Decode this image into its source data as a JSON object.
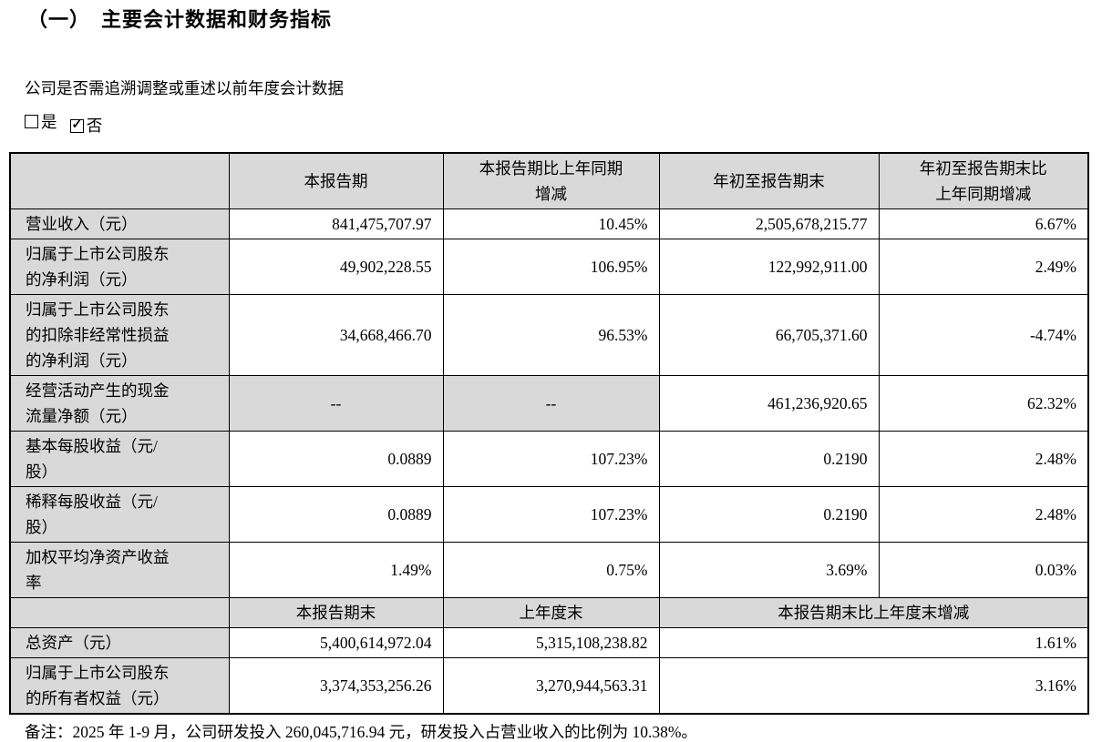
{
  "page": {
    "title": "（一）　主要会计数据和财务指标",
    "question": "公司是否需追溯调整或重述以前年度会计数据",
    "checkbox_yes_label": "是",
    "checkbox_no_label": "否",
    "check_glyph": "✓",
    "note": "备注：2025 年 1-9 月，公司研发投入 260,045,716.94 元，研发投入占营业收入的比例为 10.38%。"
  },
  "table": {
    "header1": [
      "",
      "本报告期",
      "本报告期比上年同期增减",
      "年初至报告期末",
      "年初至报告期末比上年同期增减"
    ],
    "section1_rows": [
      {
        "label": "营业收入（元）",
        "cells": [
          {
            "t": "841,475,707.97"
          },
          {
            "t": "10.45%"
          },
          {
            "t": "2,505,678,215.77"
          },
          {
            "t": "6.67%"
          }
        ]
      },
      {
        "label": "归属于上市公司股东的净利润（元）",
        "cells": [
          {
            "t": "49,902,228.55"
          },
          {
            "t": "106.95%"
          },
          {
            "t": "122,992,911.00"
          },
          {
            "t": "2.49%"
          }
        ]
      },
      {
        "label": "归属于上市公司股东的扣除非经常性损益的净利润（元）",
        "cells": [
          {
            "t": "34,668,466.70"
          },
          {
            "t": "96.53%"
          },
          {
            "t": "66,705,371.60"
          },
          {
            "t": "-4.74%"
          }
        ]
      },
      {
        "label": "经营活动产生的现金流量净额（元）",
        "cells": [
          {
            "t": "--",
            "dash": true,
            "shade": true
          },
          {
            "t": "--",
            "dash": true,
            "shade": true
          },
          {
            "t": "461,236,920.65"
          },
          {
            "t": "62.32%"
          }
        ]
      },
      {
        "label": "基本每股收益（元/股）",
        "cells": [
          {
            "t": "0.0889"
          },
          {
            "t": "107.23%"
          },
          {
            "t": "0.2190"
          },
          {
            "t": "2.48%"
          }
        ]
      },
      {
        "label": "稀释每股收益（元/股）",
        "cells": [
          {
            "t": "0.0889"
          },
          {
            "t": "107.23%"
          },
          {
            "t": "0.2190"
          },
          {
            "t": "2.48%"
          }
        ]
      },
      {
        "label": "加权平均净资产收益率",
        "cells": [
          {
            "t": "1.49%"
          },
          {
            "t": "0.75%"
          },
          {
            "t": "3.69%"
          },
          {
            "t": "0.03%"
          }
        ]
      }
    ],
    "header2": [
      "",
      "本报告期末",
      "上年度末",
      "本报告期末比上年度末增减"
    ],
    "section2_rows": [
      {
        "label": "总资产（元）",
        "cells": [
          {
            "t": "5,400,614,972.04"
          },
          {
            "t": "5,315,108,238.82"
          },
          {
            "t": "1.61%",
            "span": 2
          }
        ]
      },
      {
        "label": "归属于上市公司股东的所有者权益（元）",
        "cells": [
          {
            "t": "3,374,353,256.26"
          },
          {
            "t": "3,270,944,563.31"
          },
          {
            "t": "3.16%",
            "span": 2
          }
        ]
      }
    ],
    "colors": {
      "cell_shade": "#d9d9d9",
      "border": "#000000",
      "text": "#000000"
    }
  }
}
